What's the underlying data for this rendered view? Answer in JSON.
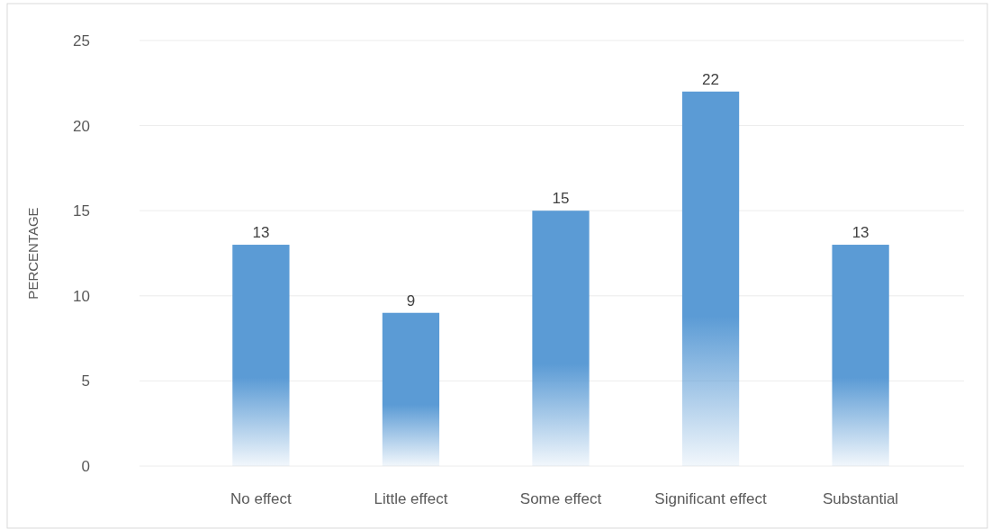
{
  "chart_data": {
    "type": "bar",
    "ylabel": "PERCENTAGE",
    "categories": [
      "No effect",
      "Little effect",
      "Some effect",
      "Significant effect",
      "Substantial"
    ],
    "values": [
      13,
      9,
      15,
      22,
      13
    ],
    "color": "#5b9bd5",
    "ylim": [
      0,
      25
    ],
    "yticks": [
      0,
      5,
      10,
      15,
      20,
      25
    ],
    "grid": "y",
    "data_labels": true
  }
}
